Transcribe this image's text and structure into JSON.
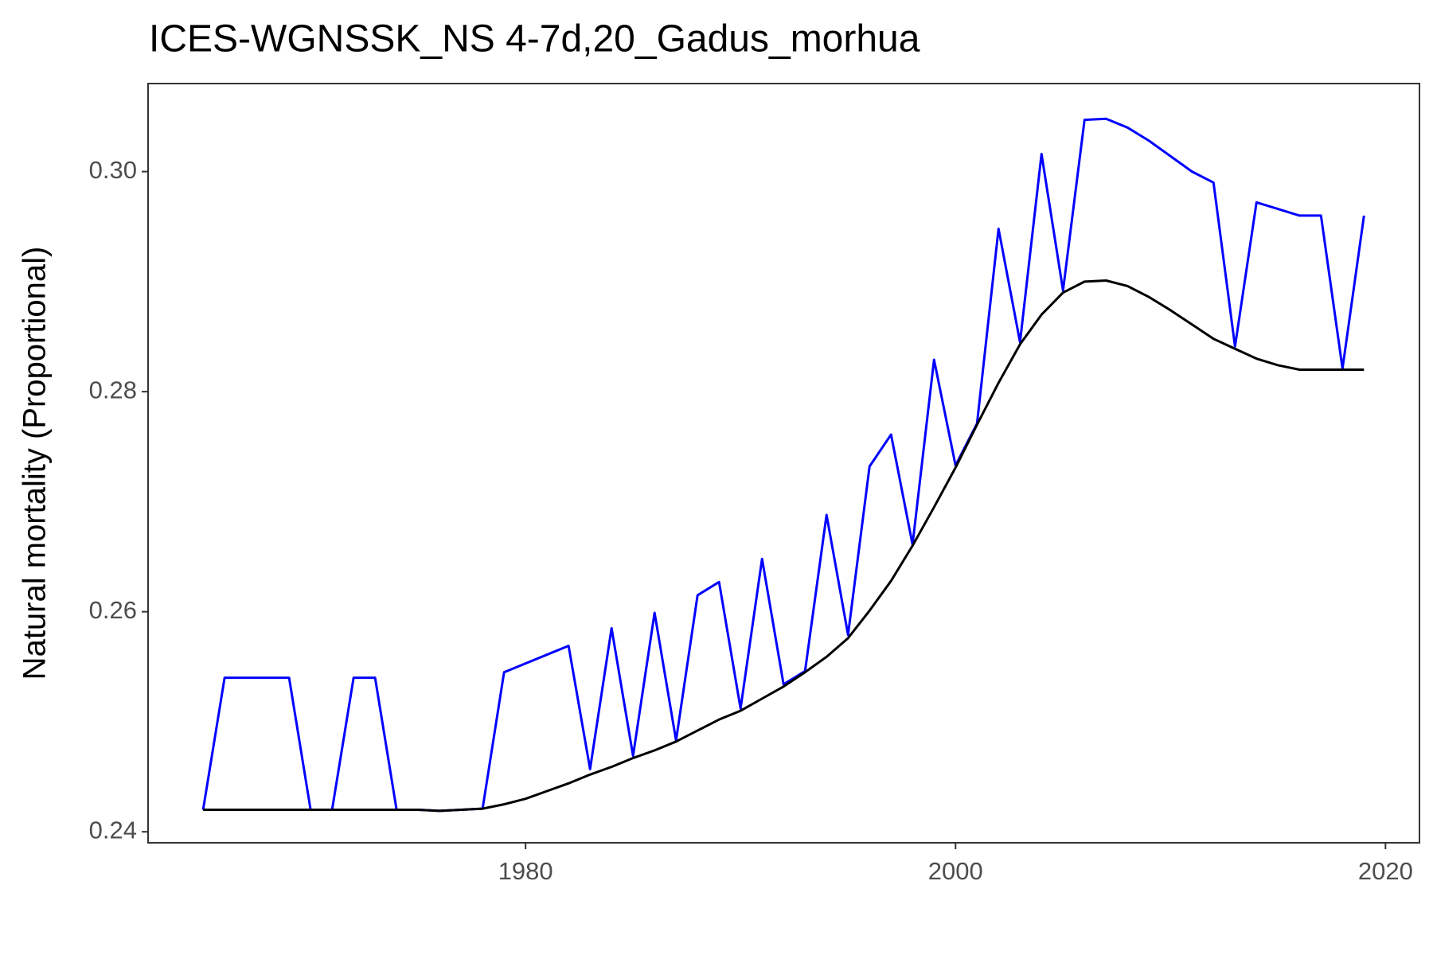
{
  "chart_data": {
    "type": "line",
    "title": "ICES-WGNSSK_NS 4-7d,20_Gadus_morhua",
    "y_label": "Natural mortality (Proportional)",
    "x": [
      1965,
      1966,
      1967,
      1968,
      1969,
      1970,
      1971,
      1972,
      1973,
      1974,
      1975,
      1976,
      1977,
      1978,
      1979,
      1980,
      1981,
      1982,
      1983,
      1984,
      1985,
      1986,
      1987,
      1988,
      1989,
      1990,
      1991,
      1992,
      1993,
      1994,
      1995,
      1996,
      1997,
      1998,
      1999,
      2000,
      2001,
      2002,
      2003,
      2004,
      2005,
      2006,
      2007,
      2008,
      2009,
      2010,
      2011,
      2012,
      2013,
      2014,
      2015,
      2016,
      2017,
      2018,
      2019
    ],
    "series": [
      {
        "color": "#0000ff",
        "values": [
          0.242,
          0.254,
          0.254,
          0.254,
          0.254,
          0.242,
          0.242,
          0.254,
          0.254,
          0.242,
          0.242,
          0.2419,
          0.242,
          0.2421,
          0.2545,
          0.2553,
          0.2561,
          0.2569,
          0.2457,
          0.2585,
          0.2469,
          0.2599,
          0.2483,
          0.2615,
          0.2627,
          0.2512,
          0.2648,
          0.2534,
          0.2546,
          0.2688,
          0.2579,
          0.2732,
          0.2761,
          0.2661,
          0.2829,
          0.2733,
          0.2771,
          0.2948,
          0.2845,
          0.3016,
          0.2892,
          0.3047,
          0.3048,
          0.304,
          0.3028,
          0.3014,
          0.3,
          0.299,
          0.2841,
          0.2972,
          0.2966,
          0.296,
          0.296,
          0.2821,
          0.296
        ]
      },
      {
        "color": "#000000",
        "values": [
          0.242,
          0.242,
          0.242,
          0.242,
          0.242,
          0.242,
          0.242,
          0.242,
          0.242,
          0.242,
          0.242,
          0.2419,
          0.242,
          0.2421,
          0.2425,
          0.243,
          0.2437,
          0.2444,
          0.2452,
          0.2459,
          0.2467,
          0.2474,
          0.2482,
          0.2492,
          0.2502,
          0.251,
          0.2521,
          0.2532,
          0.2545,
          0.2559,
          0.2576,
          0.2601,
          0.2628,
          0.266,
          0.2695,
          0.2731,
          0.277,
          0.2808,
          0.2843,
          0.287,
          0.289,
          0.29,
          0.2901,
          0.2896,
          0.2886,
          0.2874,
          0.2861,
          0.2848,
          0.2839,
          0.283,
          0.2824,
          0.282,
          0.282,
          0.282,
          0.282
        ]
      }
    ],
    "xlim": [
      1962.44,
      2021.58
    ],
    "xticks": [
      1980,
      2000,
      2020
    ],
    "ylim": [
      0.239,
      0.308
    ],
    "yticks": [
      0.24,
      0.26,
      0.28,
      {
        "value": 0.3,
        "label": "0.30"
      }
    ],
    "grid": false
  }
}
